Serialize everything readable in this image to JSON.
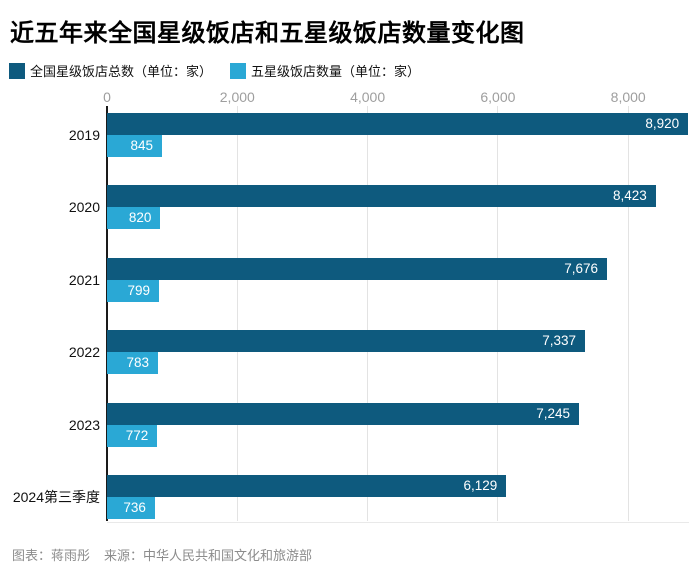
{
  "title": "近五年来全国星级饭店和五星级饭店数量变化图",
  "legend": [
    {
      "label": "全国星级饭店总数（单位：家）",
      "color": "#0e5a7e"
    },
    {
      "label": "五星级饭店数量（单位：家）",
      "color": "#2aa8d5"
    }
  ],
  "footer": {
    "credit": "图表：蒋雨彤",
    "source": "来源：中华人民共和国文化和旅游部"
  },
  "colors": {
    "total_bar": "#0e5a7e",
    "five_star_bar": "#2aa8d5",
    "tick_label": "#9e9e9e",
    "gridline": "#e3e3e3",
    "axis_line": "#1a1a1a",
    "bar_value_text": "#ffffff",
    "title_text": "#000000",
    "footer_text": "#8c8c8c"
  },
  "chart_data": {
    "type": "bar",
    "orientation": "horizontal",
    "title": "近五年来全国星级饭店和五星级饭店数量变化图",
    "categories": [
      "2019",
      "2020",
      "2021",
      "2022",
      "2023",
      "2024第三季度"
    ],
    "series": [
      {
        "name": "全国星级饭店总数（单位：家）",
        "color": "#0e5a7e",
        "values": [
          8920,
          8423,
          7676,
          7337,
          7245,
          6129
        ],
        "labels": [
          "8,920",
          "8,423",
          "7,676",
          "7,337",
          "7,245",
          "6,129"
        ]
      },
      {
        "name": "五星级饭店数量（单位：家）",
        "color": "#2aa8d5",
        "values": [
          845,
          820,
          799,
          783,
          772,
          736
        ],
        "labels": [
          "845",
          "820",
          "799",
          "783",
          "772",
          "736"
        ]
      }
    ],
    "x_axis": {
      "ticks": [
        0,
        2000,
        4000,
        6000,
        8000
      ],
      "tick_labels": [
        "0",
        "2,000",
        "4,000",
        "6,000",
        "8,000"
      ],
      "min": 0,
      "max_shown_tick": 8000,
      "data_max": 8920
    },
    "grid": true,
    "legend_position": "top",
    "value_labels": "inside-end"
  }
}
